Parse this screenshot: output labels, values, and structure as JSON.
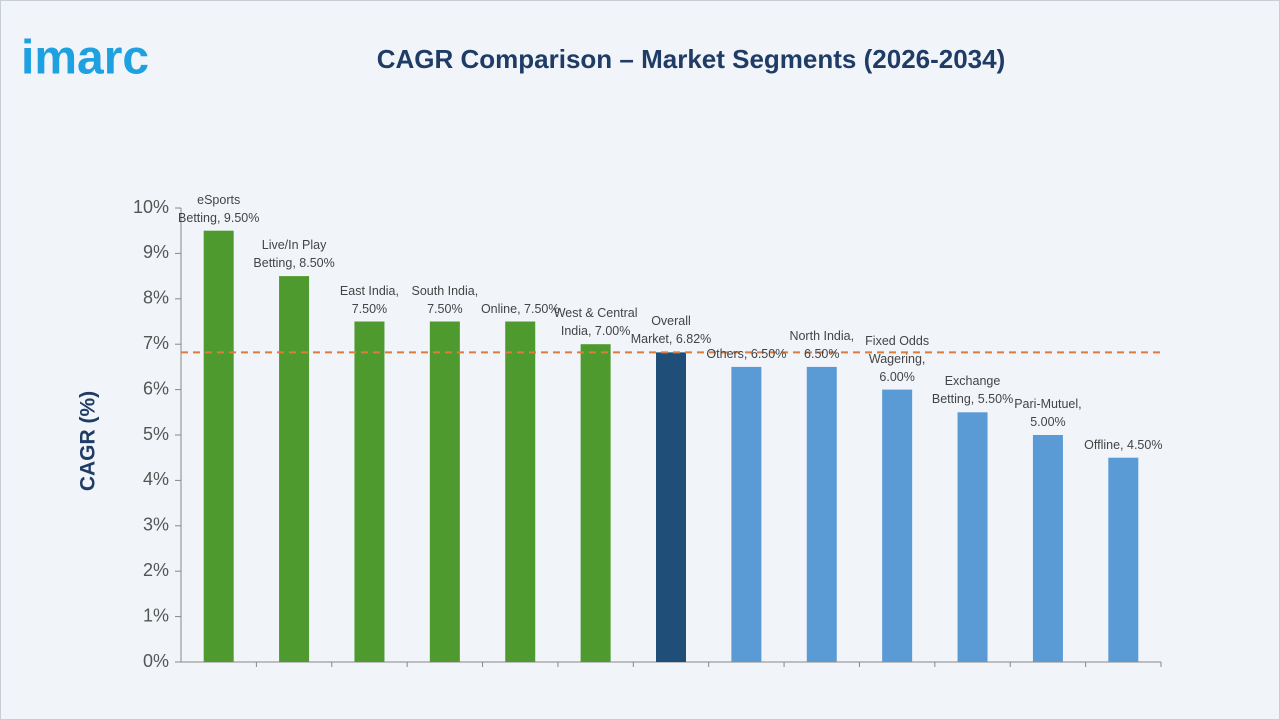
{
  "logo": "imarc",
  "chart_data": {
    "type": "bar",
    "title": "CAGR Comparison – Market Segments (2026-2034)",
    "y_label": "CAGR (%)",
    "values": [
      9.5,
      8.5,
      7.5,
      7.5,
      7.5,
      7.0,
      6.82,
      6.5,
      6.5,
      6.0,
      5.5,
      5.0,
      4.5
    ],
    "value_labels": [
      "eSports Betting, 9.50%",
      "Live/In Play Betting, 8.50%",
      "East India, 7.50%",
      "South India, 7.50%",
      "Online, 7.50%",
      "West & Central India, 7.00%",
      "Overall Market, 6.82%",
      "Others, 6.50%",
      "North India, 6.50%",
      "Fixed Odds Wagering, 6.00%",
      "Exchange Betting, 5.50%",
      "Pari-Mutuel, 5.00%",
      "Offline, 4.50%"
    ],
    "colors": [
      "#4e9a2f",
      "#4e9a2f",
      "#4e9a2f",
      "#4e9a2f",
      "#4e9a2f",
      "#4e9a2f",
      "#1f4e79",
      "#5b9bd5",
      "#5b9bd5",
      "#5b9bd5",
      "#5b9bd5",
      "#5b9bd5",
      "#5b9bd5"
    ],
    "reference_line": {
      "value": 6.82,
      "color": "#e07b39"
    },
    "ylim": [
      0,
      10
    ],
    "yticks": [
      {
        "value": 0,
        "label": "0%"
      },
      {
        "value": 1,
        "label": "1%"
      },
      {
        "value": 2,
        "label": "2%"
      },
      {
        "value": 3,
        "label": "3%"
      },
      {
        "value": 4,
        "label": "4%"
      },
      {
        "value": 5,
        "label": "5%"
      },
      {
        "value": 6,
        "label": "6%"
      },
      {
        "value": 7,
        "label": "7%"
      },
      {
        "value": 8,
        "label": "8%"
      },
      {
        "value": 9,
        "label": "9%"
      },
      {
        "value": 10,
        "label": "10%"
      }
    ]
  }
}
